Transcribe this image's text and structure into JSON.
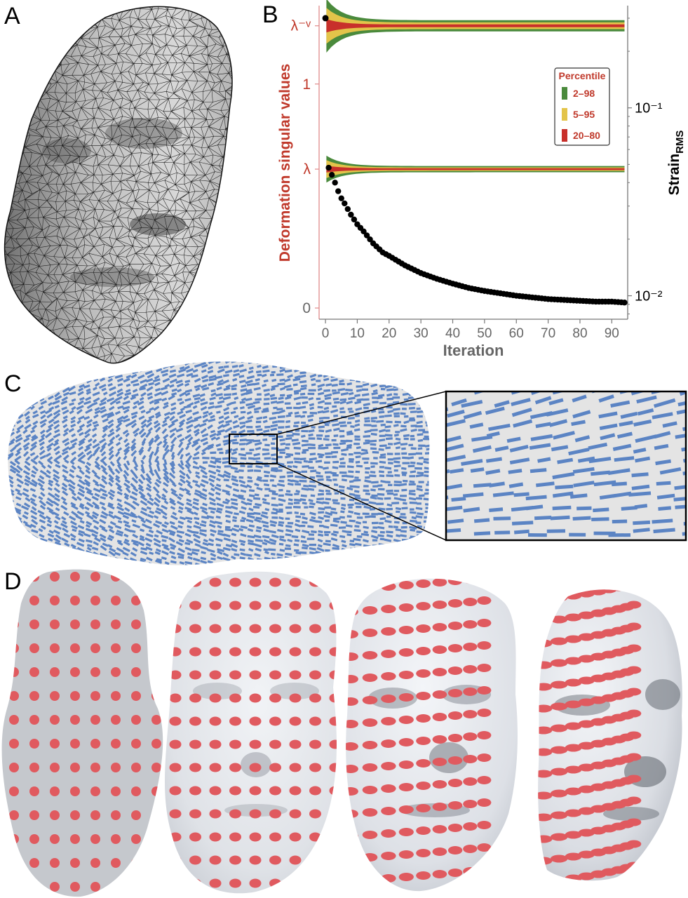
{
  "panels": {
    "a": {
      "letter": "A"
    },
    "b": {
      "letter": "B"
    },
    "c": {
      "letter": "C"
    },
    "d": {
      "letter": "D"
    }
  },
  "chart_data": {
    "type": "area",
    "xlabel": "Iteration",
    "ylabel": "Deformation singular values",
    "y2label_main": "Strain",
    "y2label_sub": "RMS",
    "xlim": [
      -2,
      95
    ],
    "ylim": [
      -0.05,
      1.35
    ],
    "x_ticks": [
      0,
      10,
      20,
      30,
      40,
      50,
      60,
      70,
      80,
      90
    ],
    "y_ticks": [
      {
        "value": 0,
        "label": "0",
        "color": "#666666"
      },
      {
        "value": 0.62,
        "label": "λ",
        "color": "#c0392b"
      },
      {
        "value": 1.0,
        "label": "1",
        "color": "#c0392b"
      },
      {
        "value": 1.26,
        "label": "λ⁻ᵛ",
        "color": "#c0392b"
      }
    ],
    "y2_scale": "log",
    "y2lim": [
      0.0075,
      0.35
    ],
    "y2_ticks": [
      {
        "value": 0.1,
        "label": "10⁻¹"
      },
      {
        "value": 0.01,
        "label": "10⁻²"
      }
    ],
    "legend": {
      "title": "Percentile",
      "placement": "right",
      "entries": [
        {
          "label": "2–98",
          "color": "#4a8a3c"
        },
        {
          "label": "5–95",
          "color": "#e3c44a"
        },
        {
          "label": "20–80",
          "color": "#c8302b"
        }
      ]
    },
    "bands": [
      {
        "name": "upper",
        "center": 1.26,
        "half_width_start": {
          "p2_98": 0.12,
          "p5_95": 0.08,
          "p20_80": 0.03
        },
        "half_width_end": {
          "p2_98": 0.025,
          "p5_95": 0.015,
          "p20_80": 0.006
        }
      },
      {
        "name": "lower",
        "center": 0.62,
        "half_width_start": {
          "p2_98": 0.06,
          "p5_95": 0.04,
          "p20_80": 0.015
        },
        "half_width_end": {
          "p2_98": 0.014,
          "p5_95": 0.008,
          "p20_80": 0.004
        }
      }
    ],
    "strain_series": {
      "name": "Strain RMS",
      "color": "#000000",
      "points": [
        [
          0,
          0.3
        ],
        [
          1,
          0.048
        ],
        [
          2,
          0.044
        ],
        [
          3,
          0.04
        ],
        [
          4,
          0.036
        ],
        [
          5,
          0.033
        ],
        [
          6,
          0.031
        ],
        [
          8,
          0.027
        ],
        [
          10,
          0.024
        ],
        [
          12,
          0.022
        ],
        [
          15,
          0.019
        ],
        [
          18,
          0.017
        ],
        [
          20,
          0.0163
        ],
        [
          25,
          0.0145
        ],
        [
          30,
          0.0132
        ],
        [
          35,
          0.0123
        ],
        [
          40,
          0.0116
        ],
        [
          45,
          0.011
        ],
        [
          50,
          0.0106
        ],
        [
          55,
          0.0103
        ],
        [
          60,
          0.01
        ],
        [
          65,
          0.0098
        ],
        [
          70,
          0.0096
        ],
        [
          75,
          0.0095
        ],
        [
          80,
          0.0094
        ],
        [
          85,
          0.0093
        ],
        [
          90,
          0.0093
        ],
        [
          94,
          0.0092
        ]
      ]
    }
  },
  "colors": {
    "mesh": "#1a1a1a",
    "surface": "#d9d9d9",
    "stripes": "#5b84c4",
    "dots": "#e05a5f",
    "axis_red": "#c0392b"
  }
}
